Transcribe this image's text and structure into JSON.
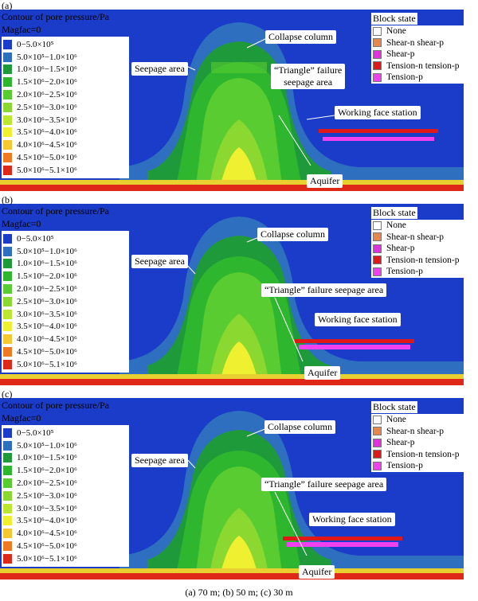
{
  "title": "Contour of pore pressure/Pa",
  "magfac": "Magfac=0",
  "legend": {
    "items": [
      {
        "label": "0−5.0×10⁵",
        "color": "#1a3cc8"
      },
      {
        "label": "5.0×10⁵−1.0×10⁶",
        "color": "#2f6fbf"
      },
      {
        "label": "1.0×10⁶−1.5×10⁶",
        "color": "#1e9a3a"
      },
      {
        "label": "1.5×10⁶−2.0×10⁶",
        "color": "#2fb62f"
      },
      {
        "label": "2.0×10⁶−2.5×10⁶",
        "color": "#58cc30"
      },
      {
        "label": "2.5×10⁶−3.0×10⁶",
        "color": "#8ad830"
      },
      {
        "label": "3.0×10⁶−3.5×10⁶",
        "color": "#bce630"
      },
      {
        "label": "3.5×10⁶−4.0×10⁶",
        "color": "#eef030"
      },
      {
        "label": "4.0×10⁶−4.5×10⁶",
        "color": "#f6c830"
      },
      {
        "label": "4.5×10⁶−5.0×10⁶",
        "color": "#f07a20"
      },
      {
        "label": "5.0×10⁶−5.1×10⁶",
        "color": "#e02818"
      }
    ]
  },
  "block_state": {
    "title": "Block state",
    "items": [
      {
        "label": "None",
        "color": "#ffffff"
      },
      {
        "label": "Shear-n shear-p",
        "color": "#e8874a"
      },
      {
        "label": "Shear-p",
        "color": "#e030e0"
      },
      {
        "label": "Tension-n tension-p",
        "color": "#e01818"
      },
      {
        "label": "Tension-p",
        "color": "#f040f0"
      }
    ]
  },
  "panels": [
    {
      "label": "(a)",
      "callouts": {
        "collapse": "Collapse column",
        "seepage": "Seepage area",
        "triangle": "“Triangle” failure\nseepage area",
        "working": "Working face station",
        "aquifer": "Aquifer"
      }
    },
    {
      "label": "(b)",
      "callouts": {
        "collapse": "Collapse column",
        "seepage": "Seepage area",
        "triangle": "“Triangle” failure seepage area",
        "working": "Working face station",
        "aquifer": "Aquifer"
      }
    },
    {
      "label": "(c)",
      "callouts": {
        "collapse": "Collapse column",
        "seepage": "Seepage area",
        "triangle": "“Triangle” failure seepage area",
        "working": "Working face station",
        "aquifer": "Aquifer"
      }
    }
  ],
  "caption": "(a) 70 m; (b) 50 m; (c) 30 m"
}
